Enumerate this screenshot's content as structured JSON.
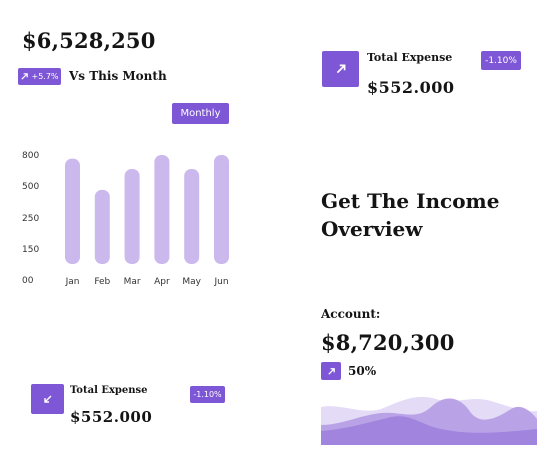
{
  "summary": {
    "amount": "$6,528,250",
    "change_badge": "+5.7%",
    "comparison_label": "Vs This Month"
  },
  "top_expense": {
    "title": "Total Expense",
    "amount": "$552.000",
    "change_badge": "-1.10%"
  },
  "bottom_expense": {
    "title": "Total Expense",
    "amount": "$552.000",
    "change_badge": "-1.10%"
  },
  "period_button": {
    "label": "Monthly"
  },
  "overview": {
    "heading_line1": "Get The Income",
    "heading_line2": "Overview"
  },
  "account": {
    "label": "Account:",
    "amount": "$8,720,300",
    "percent": "50%"
  },
  "colors": {
    "accent": "#7e57d6",
    "bar": "#cbb8ec"
  },
  "icons": {
    "trend_up": "arrow-up-right-icon",
    "trend_down": "arrow-down-left-icon"
  },
  "chart_data": {
    "type": "bar",
    "categories": [
      "Jan",
      "Feb",
      "Mar",
      "Apr",
      "May",
      "Jun"
    ],
    "values": [
      765,
      470,
      665,
      840,
      665,
      840
    ],
    "y_ticks": [
      0,
      150,
      250,
      500,
      800
    ],
    "y_tick_labels": [
      "00",
      "150",
      "250",
      "500",
      "800"
    ],
    "title": "",
    "xlabel": "",
    "ylabel": "",
    "grid": false
  }
}
